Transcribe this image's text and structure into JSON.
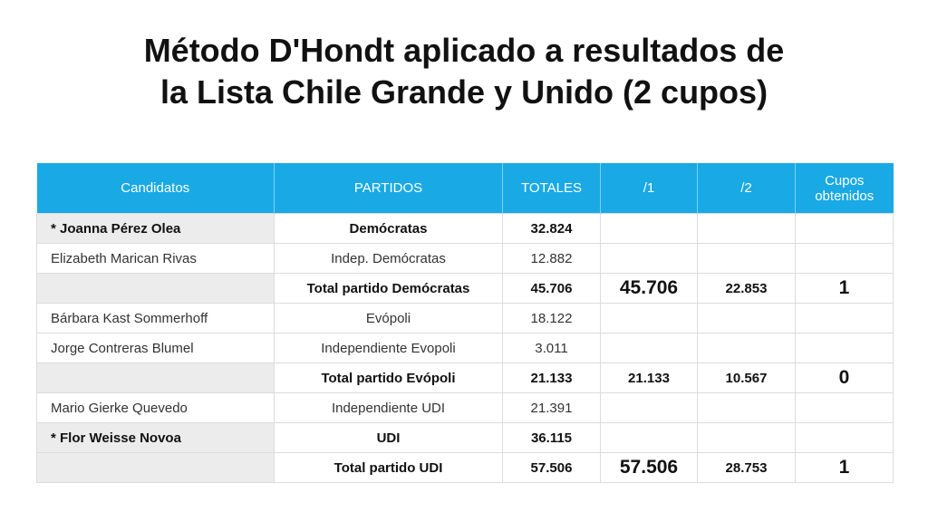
{
  "title": {
    "line1": "Método D'Hondt aplicado a resultados de",
    "line2": "la Lista Chile Grande y Unido (2 cupos)"
  },
  "colors": {
    "header_bg": "#19a9e5",
    "shaded_cell": "#ececec"
  },
  "chart_data": {
    "type": "table",
    "columns": [
      "Candidatos",
      "PARTIDOS",
      "TOTALES",
      "/1",
      "/2",
      "Cupos obtenidos"
    ],
    "rows": [
      {
        "candidato": "* Joanna Pérez Olea",
        "partido": "Demócratas",
        "total": "32.824",
        "d1": "",
        "d2": "",
        "cupos": "",
        "bold": true,
        "is_total": false,
        "shaded": true
      },
      {
        "candidato": "Elizabeth Marican Rivas",
        "partido": "Indep. Demócratas",
        "total": "12.882",
        "d1": "",
        "d2": "",
        "cupos": "",
        "bold": false,
        "is_total": false,
        "shaded": false
      },
      {
        "candidato": "",
        "partido": "Total partido Demócratas",
        "total": "45.706",
        "d1": "45.706",
        "d2": "22.853",
        "cupos": "1",
        "bold": true,
        "is_total": true,
        "d1_big": true
      },
      {
        "candidato": "Bárbara Kast Sommerhoff",
        "partido": "Evópoli",
        "total": "18.122",
        "d1": "",
        "d2": "",
        "cupos": "",
        "bold": false,
        "is_total": false,
        "shaded": false
      },
      {
        "candidato": "Jorge Contreras Blumel",
        "partido": "Independiente Evopoli",
        "total": "3.011",
        "d1": "",
        "d2": "",
        "cupos": "",
        "bold": false,
        "is_total": false,
        "shaded": false
      },
      {
        "candidato": "",
        "partido": "Total partido Evópoli",
        "total": "21.133",
        "d1": "21.133",
        "d2": "10.567",
        "cupos": "0",
        "bold": true,
        "is_total": true,
        "d1_big": false
      },
      {
        "candidato": "Mario Gierke Quevedo",
        "partido": "Independiente UDI",
        "total": "21.391",
        "d1": "",
        "d2": "",
        "cupos": "",
        "bold": false,
        "is_total": false,
        "shaded": false
      },
      {
        "candidato": "* Flor Weisse Novoa",
        "partido": "UDI",
        "total": "36.115",
        "d1": "",
        "d2": "",
        "cupos": "",
        "bold": true,
        "is_total": false,
        "shaded": true
      },
      {
        "candidato": "",
        "partido": "Total partido UDI",
        "total": "57.506",
        "d1": "57.506",
        "d2": "28.753",
        "cupos": "1",
        "bold": true,
        "is_total": true,
        "d1_big": true
      }
    ]
  }
}
